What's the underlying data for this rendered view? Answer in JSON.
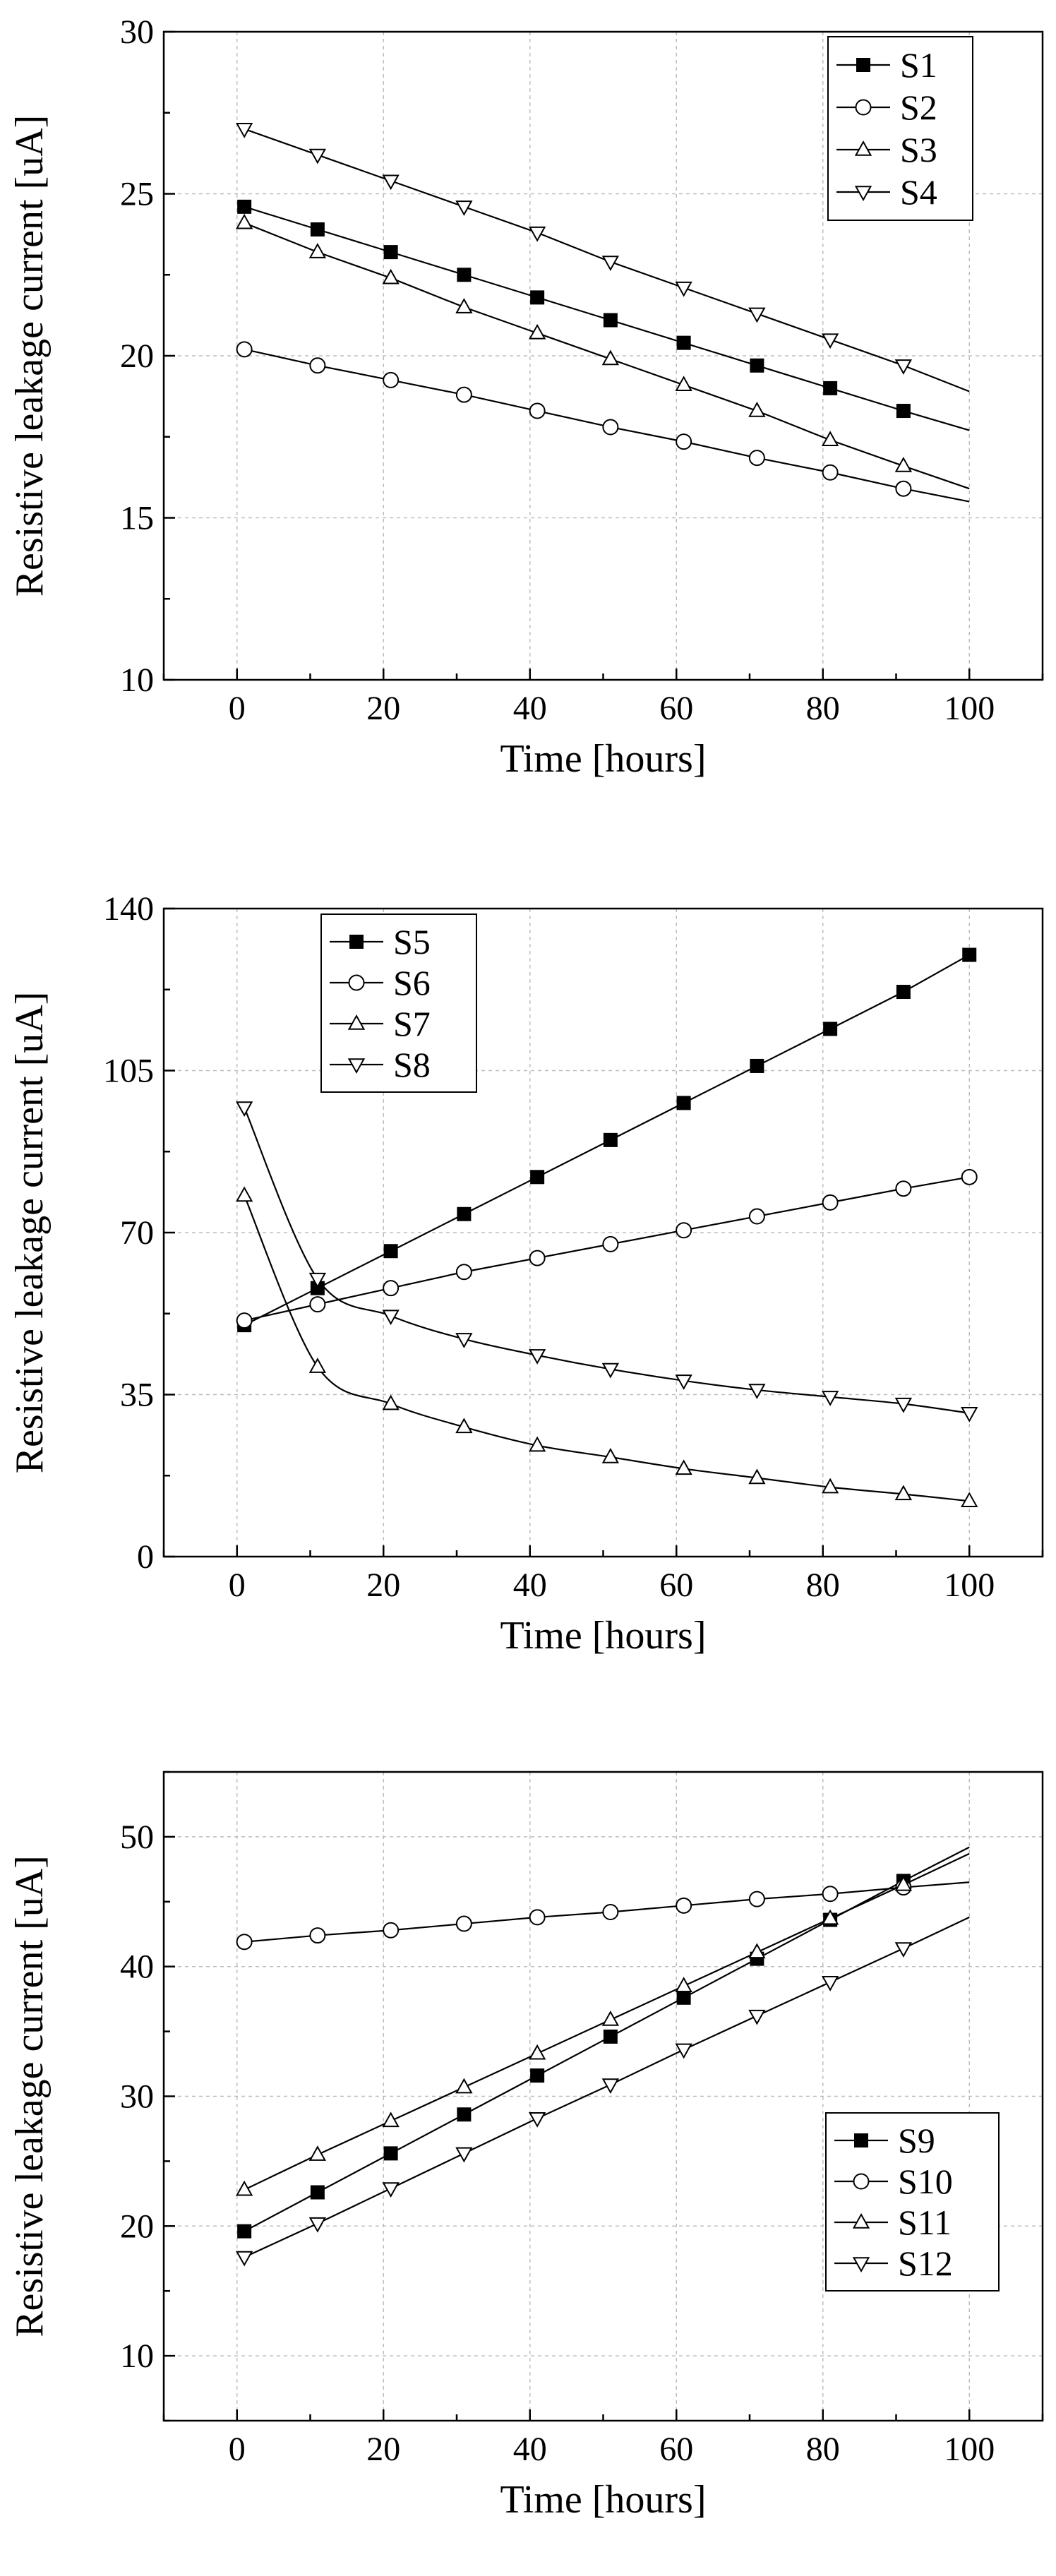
{
  "chart_data": [
    {
      "type": "line",
      "xlabel": "Time [hours]",
      "ylabel": "Resistive leakage current [uA]",
      "xlim": [
        -10,
        110
      ],
      "ylim": [
        10,
        30
      ],
      "xticks": [
        0,
        20,
        40,
        60,
        80,
        100
      ],
      "yticks": [
        10,
        15,
        20,
        25,
        30
      ],
      "grid": true,
      "legend_position": "top-right",
      "series": [
        {
          "name": "S1",
          "marker": "square-filled",
          "points": [
            [
              1,
              24.6
            ],
            [
              11,
              23.9
            ],
            [
              21,
              23.2
            ],
            [
              31,
              22.5
            ],
            [
              41,
              21.8
            ],
            [
              51,
              21.1
            ],
            [
              61,
              20.4
            ],
            [
              71,
              19.7
            ],
            [
              81,
              19.0
            ],
            [
              91,
              18.3
            ]
          ],
          "line_end": [
            100,
            17.7
          ]
        },
        {
          "name": "S2",
          "marker": "circle-open",
          "points": [
            [
              1,
              20.2
            ],
            [
              11,
              19.7
            ],
            [
              21,
              19.25
            ],
            [
              31,
              18.8
            ],
            [
              41,
              18.3
            ],
            [
              51,
              17.8
            ],
            [
              61,
              17.35
            ],
            [
              71,
              16.85
            ],
            [
              81,
              16.4
            ],
            [
              91,
              15.9
            ]
          ],
          "line_end": [
            100,
            15.5
          ]
        },
        {
          "name": "S3",
          "marker": "triangle-up-open",
          "points": [
            [
              1,
              24.1
            ],
            [
              11,
              23.2
            ],
            [
              21,
              22.4
            ],
            [
              31,
              21.5
            ],
            [
              41,
              20.7
            ],
            [
              51,
              19.9
            ],
            [
              61,
              19.1
            ],
            [
              71,
              18.3
            ],
            [
              81,
              17.4
            ],
            [
              91,
              16.6
            ]
          ],
          "line_end": [
            100,
            15.9
          ]
        },
        {
          "name": "S4",
          "marker": "triangle-down-open",
          "points": [
            [
              1,
              27.0
            ],
            [
              11,
              26.2
            ],
            [
              21,
              25.4
            ],
            [
              31,
              24.6
            ],
            [
              41,
              23.8
            ],
            [
              51,
              22.9
            ],
            [
              61,
              22.1
            ],
            [
              71,
              21.3
            ],
            [
              81,
              20.5
            ],
            [
              91,
              19.7
            ]
          ],
          "line_end": [
            100,
            18.9
          ]
        }
      ]
    },
    {
      "type": "line",
      "xlabel": "Time [hours]",
      "ylabel": "Resistive leakage current [uA]",
      "xlim": [
        -10,
        110
      ],
      "ylim": [
        0,
        140
      ],
      "xticks": [
        0,
        20,
        40,
        60,
        80,
        100
      ],
      "yticks": [
        0,
        35,
        70,
        105,
        140
      ],
      "grid": true,
      "legend_position": "top-left",
      "series": [
        {
          "name": "S5",
          "marker": "square-filled",
          "points": [
            [
              1,
              50
            ],
            [
              11,
              58
            ],
            [
              21,
              66
            ],
            [
              31,
              74
            ],
            [
              41,
              82
            ],
            [
              51,
              90
            ],
            [
              61,
              98
            ],
            [
              71,
              106
            ],
            [
              81,
              114
            ],
            [
              91,
              122
            ],
            [
              100,
              130
            ]
          ],
          "curve": "linear"
        },
        {
          "name": "S6",
          "marker": "circle-open",
          "points": [
            [
              1,
              51
            ],
            [
              11,
              54.5
            ],
            [
              21,
              58
            ],
            [
              31,
              61.5
            ],
            [
              41,
              64.5
            ],
            [
              51,
              67.5
            ],
            [
              61,
              70.5
            ],
            [
              71,
              73.5
            ],
            [
              81,
              76.5
            ],
            [
              91,
              79.5
            ],
            [
              100,
              82
            ]
          ],
          "curve": "linear"
        },
        {
          "name": "S7",
          "marker": "triangle-up-open",
          "points": [
            [
              1,
              78
            ],
            [
              11,
              41
            ],
            [
              21,
              33
            ],
            [
              31,
              28
            ],
            [
              41,
              24
            ],
            [
              51,
              21.5
            ],
            [
              61,
              19
            ],
            [
              71,
              17
            ],
            [
              81,
              15
            ],
            [
              91,
              13.5
            ],
            [
              100,
              12
            ]
          ],
          "curve": "smooth"
        },
        {
          "name": "S8",
          "marker": "triangle-down-open",
          "points": [
            [
              1,
              97
            ],
            [
              11,
              60
            ],
            [
              21,
              52
            ],
            [
              31,
              47
            ],
            [
              41,
              43.5
            ],
            [
              51,
              40.5
            ],
            [
              61,
              38
            ],
            [
              71,
              36
            ],
            [
              81,
              34.5
            ],
            [
              91,
              33
            ],
            [
              100,
              31
            ]
          ],
          "curve": "smooth"
        }
      ]
    },
    {
      "type": "line",
      "xlabel": "Time [hours]",
      "ylabel": "Resistive leakage current [uA]",
      "xlim": [
        -10,
        110
      ],
      "ylim": [
        5,
        55
      ],
      "xticks": [
        0,
        20,
        40,
        60,
        80,
        100
      ],
      "yticks": [
        10,
        20,
        30,
        40,
        50
      ],
      "grid": true,
      "legend_position": "bottom-right",
      "series": [
        {
          "name": "S9",
          "marker": "square-filled",
          "points": [
            [
              1,
              19.6
            ],
            [
              11,
              22.6
            ],
            [
              21,
              25.6
            ],
            [
              31,
              28.6
            ],
            [
              41,
              31.6
            ],
            [
              51,
              34.6
            ],
            [
              61,
              37.6
            ],
            [
              71,
              40.6
            ],
            [
              81,
              43.6
            ],
            [
              91,
              46.6
            ]
          ],
          "line_end": [
            100,
            49.2
          ]
        },
        {
          "name": "S10",
          "marker": "circle-open",
          "points": [
            [
              1,
              41.9
            ],
            [
              11,
              42.4
            ],
            [
              21,
              42.8
            ],
            [
              31,
              43.3
            ],
            [
              41,
              43.8
            ],
            [
              51,
              44.2
            ],
            [
              61,
              44.7
            ],
            [
              71,
              45.2
            ],
            [
              81,
              45.6
            ],
            [
              91,
              46.1
            ]
          ],
          "line_end": [
            100,
            46.5
          ]
        },
        {
          "name": "S11",
          "marker": "triangle-up-open",
          "points": [
            [
              1,
              22.8
            ],
            [
              11,
              25.5
            ],
            [
              21,
              28.1
            ],
            [
              31,
              30.7
            ],
            [
              41,
              33.3
            ],
            [
              51,
              35.9
            ],
            [
              61,
              38.5
            ],
            [
              71,
              41.1
            ],
            [
              81,
              43.7
            ],
            [
              91,
              46.3
            ]
          ],
          "line_end": [
            100,
            48.7
          ]
        },
        {
          "name": "S12",
          "marker": "triangle-down-open",
          "points": [
            [
              1,
              17.6
            ],
            [
              11,
              20.2
            ],
            [
              21,
              22.9
            ],
            [
              31,
              25.6
            ],
            [
              41,
              28.3
            ],
            [
              51,
              30.9
            ],
            [
              61,
              33.6
            ],
            [
              71,
              36.2
            ],
            [
              81,
              38.8
            ],
            [
              91,
              41.4
            ]
          ],
          "line_end": [
            100,
            43.8
          ]
        }
      ]
    }
  ]
}
